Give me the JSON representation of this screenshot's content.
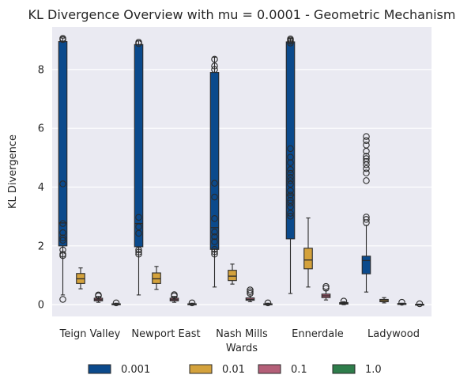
{
  "chart_data": {
    "type": "box",
    "title": "KL Divergence Overview with mu = 0.0001 - Geometric Mechanism",
    "xlabel": "Wards",
    "ylabel": "KL Divergence",
    "ylim": [
      -0.4,
      9.45
    ],
    "yticks": [
      0,
      2,
      4,
      6,
      8
    ],
    "grid": true,
    "legend_position": "bottom-center",
    "categories": [
      "Teign Valley",
      "Newport East",
      "Nash Mills",
      "Ennerdale",
      "Ladywood"
    ],
    "series": [
      {
        "name": "0.001",
        "color": "#0b4a8c",
        "boxes": [
          {
            "whislo": 0.33,
            "q1": 2.0,
            "med": 2.78,
            "q3": 8.95,
            "whishi": 9.07,
            "fliers": [
              9.02,
              9.06,
              4.11,
              2.76,
              2.45,
              2.27,
              2.19,
              1.86,
              1.72,
              1.67,
              0.18
            ]
          },
          {
            "whislo": 0.33,
            "q1": 1.97,
            "med": 2.76,
            "q3": 8.85,
            "whishi": 8.98,
            "fliers": [
              8.88,
              8.93,
              2.97,
              2.65,
              2.43,
              1.86,
              1.79,
              1.72
            ]
          },
          {
            "whislo": 0.6,
            "q1": 1.88,
            "med": 2.62,
            "q3": 7.9,
            "whishi": 8.42,
            "fliers": [
              8.35,
              8.12,
              8.0,
              4.13,
              3.66,
              2.93,
              2.47,
              2.31,
              2.14,
              1.88,
              1.8,
              1.72
            ]
          },
          {
            "whislo": 0.38,
            "q1": 2.24,
            "med": 3.73,
            "q3": 8.94,
            "whishi": 9.06,
            "fliers": [
              8.9,
              8.96,
              9.0,
              9.04,
              5.31,
              5.02,
              4.83,
              4.6,
              4.47,
              4.33,
              4.22,
              4.1,
              3.88,
              3.73,
              3.55,
              3.46,
              3.33,
              3.11,
              3.01
            ]
          },
          {
            "whislo": 0.43,
            "q1": 1.05,
            "med": 1.5,
            "q3": 1.65,
            "whishi": 2.7,
            "fliers": [
              5.72,
              5.58,
              5.43,
              5.22,
              5.05,
              4.97,
              4.87,
              4.76,
              4.63,
              4.48,
              4.22,
              2.98,
              2.9,
              2.79
            ]
          }
        ]
      },
      {
        "name": "0.01",
        "color": "#d4a23c",
        "boxes": [
          {
            "whislo": 0.54,
            "q1": 0.72,
            "med": 0.88,
            "q3": 1.06,
            "whishi": 1.25,
            "fliers": []
          },
          {
            "whislo": 0.52,
            "q1": 0.72,
            "med": 0.88,
            "q3": 1.08,
            "whishi": 1.3,
            "fliers": []
          },
          {
            "whislo": 0.7,
            "q1": 0.82,
            "med": 0.97,
            "q3": 1.17,
            "whishi": 1.38,
            "fliers": []
          },
          {
            "whislo": 0.6,
            "q1": 1.22,
            "med": 1.52,
            "q3": 1.92,
            "whishi": 2.95,
            "fliers": []
          },
          {
            "whislo": 0.06,
            "q1": 0.1,
            "med": 0.14,
            "q3": 0.18,
            "whishi": 0.24,
            "fliers": []
          }
        ]
      },
      {
        "name": "0.1",
        "color": "#b45f78",
        "boxes": [
          {
            "whislo": 0.08,
            "q1": 0.13,
            "med": 0.17,
            "q3": 0.22,
            "whishi": 0.28,
            "fliers": [
              0.3,
              0.33
            ]
          },
          {
            "whislo": 0.08,
            "q1": 0.13,
            "med": 0.17,
            "q3": 0.22,
            "whishi": 0.28,
            "fliers": [
              0.3,
              0.34
            ]
          },
          {
            "whislo": 0.1,
            "q1": 0.15,
            "med": 0.18,
            "q3": 0.23,
            "whishi": 0.3,
            "fliers": [
              0.38,
              0.44,
              0.5
            ]
          },
          {
            "whislo": 0.16,
            "q1": 0.24,
            "med": 0.3,
            "q3": 0.36,
            "whishi": 0.48,
            "fliers": [
              0.56,
              0.62
            ]
          },
          {
            "whislo": 0.01,
            "q1": 0.02,
            "med": 0.03,
            "q3": 0.04,
            "whishi": 0.05,
            "fliers": [
              0.08
            ]
          }
        ]
      },
      {
        "name": "1.0",
        "color": "#2e7d4b",
        "boxes": [
          {
            "whislo": 0.0,
            "q1": 0.01,
            "med": 0.02,
            "q3": 0.03,
            "whishi": 0.05,
            "fliers": [
              0.06
            ]
          },
          {
            "whislo": 0.0,
            "q1": 0.01,
            "med": 0.02,
            "q3": 0.03,
            "whishi": 0.05,
            "fliers": [
              0.06
            ]
          },
          {
            "whislo": 0.0,
            "q1": 0.01,
            "med": 0.02,
            "q3": 0.03,
            "whishi": 0.05,
            "fliers": [
              0.06
            ]
          },
          {
            "whislo": 0.0,
            "q1": 0.02,
            "med": 0.04,
            "q3": 0.07,
            "whishi": 0.1,
            "fliers": [
              0.12
            ]
          },
          {
            "whislo": 0.0,
            "q1": 0.005,
            "med": 0.01,
            "q3": 0.015,
            "whishi": 0.02,
            "fliers": [
              0.03
            ]
          }
        ]
      }
    ]
  }
}
